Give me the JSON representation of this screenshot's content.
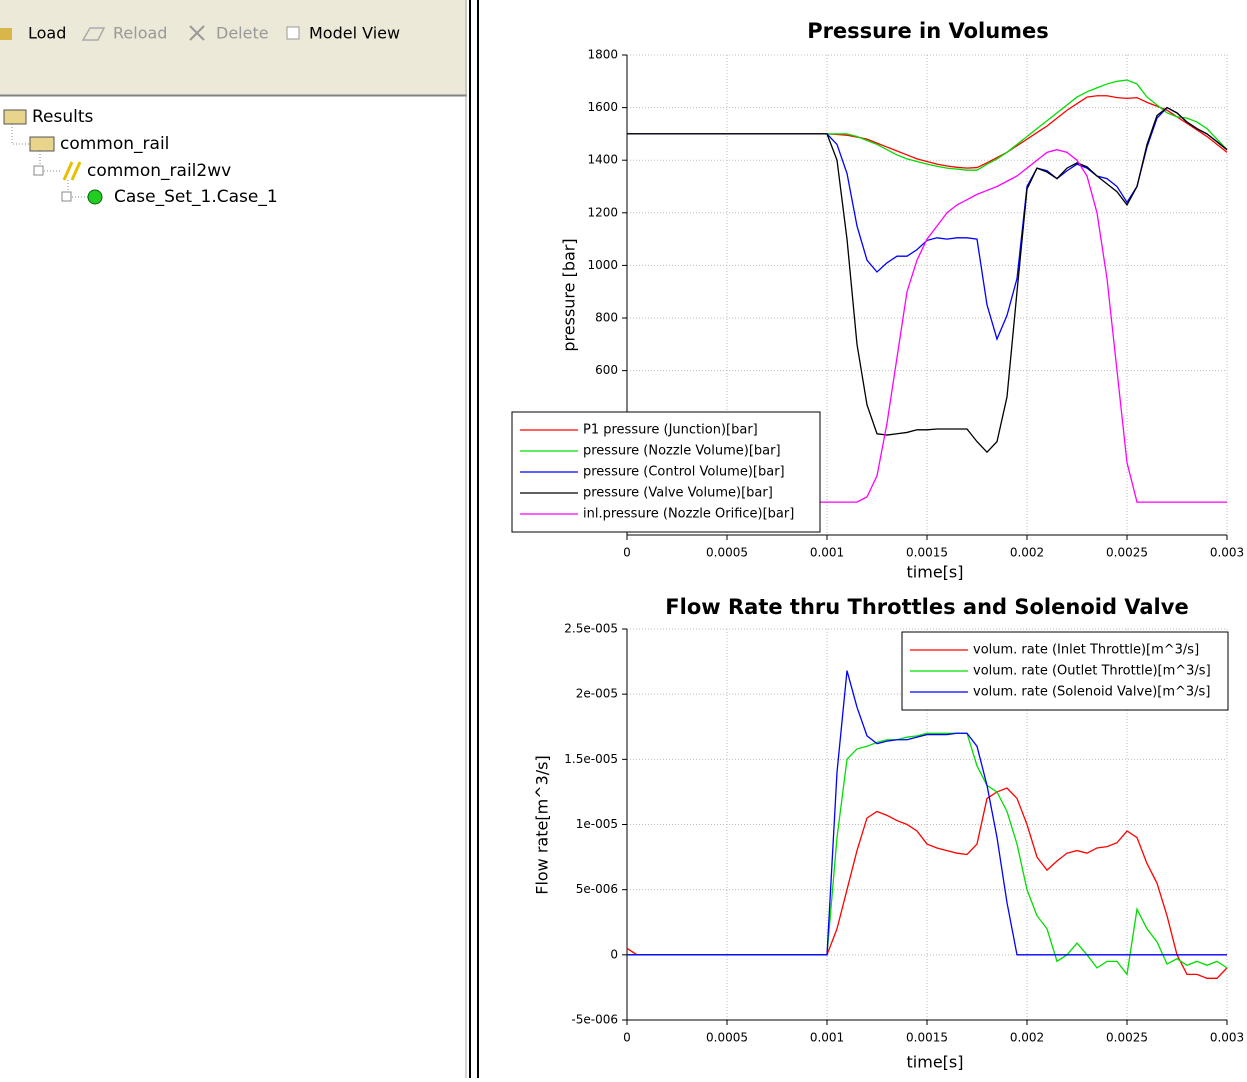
{
  "toolbar": {
    "buttons": [
      "Load",
      "Reload",
      "Delete"
    ],
    "checkbox": "Model View"
  },
  "tree": {
    "nodes": [
      "Results",
      "common_rail",
      "common_rail2wv",
      "Case_Set_1.Case_1"
    ]
  },
  "chart_data": [
    {
      "type": "line",
      "title": "Pressure in Volumes",
      "x_label": "time[s]",
      "y_label": "pressure [bar]",
      "x": [
        0,
        5e-05,
        0.0001,
        0.00015,
        0.0002,
        0.00025,
        0.0003,
        0.00035,
        0.0004,
        0.00045,
        0.0005,
        0.00055,
        0.0006,
        0.00065,
        0.0007,
        0.00075,
        0.0008,
        0.00085,
        0.0009,
        0.00095,
        0.001,
        0.00105,
        0.0011,
        0.00115,
        0.0012,
        0.00125,
        0.0013,
        0.00135,
        0.0014,
        0.00145,
        0.0015,
        0.00155,
        0.0016,
        0.00165,
        0.0017,
        0.00175,
        0.0018,
        0.00185,
        0.0019,
        0.00195,
        0.002,
        0.00205,
        0.0021,
        0.00215,
        0.0022,
        0.00225,
        0.0023,
        0.00235,
        0.0024,
        0.00245,
        0.0025,
        0.00255,
        0.0026,
        0.00265,
        0.0027,
        0.00275,
        0.0028,
        0.00285,
        0.0029,
        0.00295,
        0.003
      ],
      "series": [
        {
          "name": "P1 pressure (Junction)[bar]",
          "color": "#ff0000",
          "values": [
            1500,
            1500,
            1500,
            1500,
            1500,
            1500,
            1500,
            1500,
            1500,
            1500,
            1500,
            1500,
            1500,
            1500,
            1500,
            1500,
            1500,
            1500,
            1500,
            1500,
            1500,
            1498,
            1495,
            1488,
            1480,
            1465,
            1450,
            1435,
            1420,
            1405,
            1395,
            1385,
            1378,
            1373,
            1370,
            1372,
            1390,
            1410,
            1430,
            1455,
            1480,
            1505,
            1530,
            1560,
            1590,
            1615,
            1640,
            1645,
            1645,
            1638,
            1635,
            1638,
            1620,
            1605,
            1590,
            1565,
            1540,
            1515,
            1490,
            1460,
            1430
          ]
        },
        {
          "name": "pressure (Nozzle Volume)[bar]",
          "color": "#00dd00",
          "values": [
            1500,
            1500,
            1500,
            1500,
            1500,
            1500,
            1500,
            1500,
            1500,
            1500,
            1500,
            1500,
            1500,
            1500,
            1500,
            1500,
            1500,
            1500,
            1500,
            1500,
            1500,
            1500,
            1500,
            1490,
            1475,
            1460,
            1440,
            1420,
            1405,
            1395,
            1385,
            1377,
            1370,
            1366,
            1362,
            1362,
            1385,
            1405,
            1430,
            1460,
            1490,
            1520,
            1550,
            1580,
            1610,
            1640,
            1660,
            1675,
            1690,
            1700,
            1705,
            1690,
            1640,
            1610,
            1580,
            1565,
            1560,
            1545,
            1520,
            1480,
            1440
          ]
        },
        {
          "name": "pressure (Control Volume)[bar]",
          "color": "#0000ff",
          "values": [
            1500,
            1500,
            1500,
            1500,
            1500,
            1500,
            1500,
            1500,
            1500,
            1500,
            1500,
            1500,
            1500,
            1500,
            1500,
            1500,
            1500,
            1500,
            1500,
            1500,
            1500,
            1460,
            1350,
            1150,
            1020,
            975,
            1010,
            1035,
            1035,
            1060,
            1095,
            1105,
            1100,
            1105,
            1105,
            1100,
            850,
            720,
            810,
            950,
            1300,
            1370,
            1360,
            1330,
            1360,
            1385,
            1370,
            1340,
            1330,
            1300,
            1240,
            1300,
            1450,
            1560,
            1600,
            1580,
            1545,
            1520,
            1500,
            1470,
            1440
          ]
        },
        {
          "name": "pressure (Valve Volume)[bar]",
          "color": "#000000",
          "values": [
            1500,
            1500,
            1500,
            1500,
            1500,
            1500,
            1500,
            1500,
            1500,
            1500,
            1500,
            1500,
            1500,
            1500,
            1500,
            1500,
            1500,
            1500,
            1500,
            1500,
            1500,
            1400,
            1100,
            700,
            470,
            360,
            355,
            360,
            365,
            375,
            375,
            378,
            378,
            378,
            378,
            330,
            290,
            330,
            500,
            900,
            1290,
            1370,
            1355,
            1330,
            1370,
            1390,
            1375,
            1340,
            1310,
            1280,
            1230,
            1300,
            1460,
            1570,
            1600,
            1580,
            1545,
            1520,
            1500,
            1470,
            1440
          ]
        },
        {
          "name": "inl.pressure (Nozzle Orifice)[bar]",
          "color": "#ff00ff",
          "values": [
            100,
            100,
            100,
            100,
            100,
            100,
            100,
            100,
            100,
            100,
            100,
            100,
            100,
            100,
            100,
            100,
            100,
            100,
            100,
            100,
            100,
            100,
            100,
            100,
            120,
            200,
            400,
            650,
            900,
            1020,
            1100,
            1150,
            1200,
            1230,
            1250,
            1270,
            1285,
            1300,
            1320,
            1340,
            1370,
            1400,
            1430,
            1440,
            1430,
            1400,
            1340,
            1200,
            950,
            600,
            250,
            100,
            100,
            100,
            100,
            100,
            100,
            100,
            100,
            100,
            100
          ]
        }
      ],
      "xlim": [
        0,
        0.003
      ],
      "xticks": [
        0,
        0.0005,
        0.001,
        0.0015,
        0.002,
        0.0025,
        0.003
      ],
      "ylim": [
        -25,
        1800
      ],
      "yticks": [
        600,
        800,
        1000,
        1200,
        1400,
        1600,
        1800
      ],
      "grid": true,
      "legend": "lower left"
    },
    {
      "type": "line",
      "title": "Flow Rate thru Throttles and Solenoid Valve",
      "x_label": "time[s]",
      "y_label": "Flow rate[m^3/s]",
      "x": [
        0,
        5e-05,
        0.0001,
        0.00015,
        0.0002,
        0.00025,
        0.0003,
        0.00035,
        0.0004,
        0.00045,
        0.0005,
        0.00055,
        0.0006,
        0.00065,
        0.0007,
        0.00075,
        0.0008,
        0.00085,
        0.0009,
        0.00095,
        0.001,
        0.00105,
        0.0011,
        0.00115,
        0.0012,
        0.00125,
        0.0013,
        0.00135,
        0.0014,
        0.00145,
        0.0015,
        0.00155,
        0.0016,
        0.00165,
        0.0017,
        0.00175,
        0.0018,
        0.00185,
        0.0019,
        0.00195,
        0.002,
        0.00205,
        0.0021,
        0.00215,
        0.0022,
        0.00225,
        0.0023,
        0.00235,
        0.0024,
        0.00245,
        0.0025,
        0.00255,
        0.0026,
        0.00265,
        0.0027,
        0.00275,
        0.0028,
        0.00285,
        0.0029,
        0.00295,
        0.003
      ],
      "series": [
        {
          "name": "volum. rate (Inlet Throttle)[m^3/s]",
          "color": "#ff0000",
          "values": [
            5e-07,
            0,
            0,
            0,
            0,
            0,
            0,
            0,
            0,
            0,
            0,
            0,
            0,
            0,
            0,
            0,
            0,
            0,
            0,
            0,
            0,
            2e-06,
            5e-06,
            8e-06,
            1.05e-05,
            1.1e-05,
            1.07e-05,
            1.03e-05,
            1e-05,
            9.5e-06,
            8.5e-06,
            8.2e-06,
            8e-06,
            7.8e-06,
            7.7e-06,
            8.5e-06,
            1.2e-05,
            1.25e-05,
            1.28e-05,
            1.2e-05,
            1e-05,
            7.5e-06,
            6.5e-06,
            7.2e-06,
            7.8e-06,
            8e-06,
            7.8e-06,
            8.2e-06,
            8.3e-06,
            8.6e-06,
            9.5e-06,
            9e-06,
            7e-06,
            5.5e-06,
            3e-06,
            0,
            -1.5e-06,
            -1.5e-06,
            -1.8e-06,
            -1.8e-06,
            -1e-06
          ]
        },
        {
          "name": "volum. rate (Outlet Throttle)[m^3/s]",
          "color": "#00dd00",
          "values": [
            0,
            0,
            0,
            0,
            0,
            0,
            0,
            0,
            0,
            0,
            0,
            0,
            0,
            0,
            0,
            0,
            0,
            0,
            0,
            0,
            0,
            9e-06,
            1.5e-05,
            1.58e-05,
            1.6e-05,
            1.63e-05,
            1.65e-05,
            1.65e-05,
            1.67e-05,
            1.68e-05,
            1.7e-05,
            1.7e-05,
            1.7e-05,
            1.7e-05,
            1.7e-05,
            1.45e-05,
            1.3e-05,
            1.25e-05,
            1.1e-05,
            8.5e-06,
            5e-06,
            3e-06,
            2e-06,
            -5e-07,
            0,
            9e-07,
            0,
            -1e-06,
            -5e-07,
            -5e-07,
            -1.5e-06,
            3.5e-06,
            2e-06,
            1e-06,
            -7e-07,
            -3e-07,
            -8e-07,
            -5e-07,
            -8e-07,
            -5e-07,
            -1e-06
          ]
        },
        {
          "name": "volum. rate (Solenoid Valve)[m^3/s]",
          "color": "#0000ff",
          "values": [
            0,
            0,
            0,
            0,
            0,
            0,
            0,
            0,
            0,
            0,
            0,
            0,
            0,
            0,
            0,
            0,
            0,
            0,
            0,
            0,
            0,
            1.4e-05,
            2.18e-05,
            1.9e-05,
            1.68e-05,
            1.62e-05,
            1.64e-05,
            1.65e-05,
            1.65e-05,
            1.67e-05,
            1.69e-05,
            1.69e-05,
            1.69e-05,
            1.7e-05,
            1.7e-05,
            1.6e-05,
            1.3e-05,
            9e-06,
            4e-06,
            0,
            0,
            0,
            0,
            0,
            0,
            0,
            0,
            0,
            0,
            0,
            0,
            0,
            0,
            0,
            0,
            0,
            0,
            0,
            0,
            0,
            0
          ]
        }
      ],
      "xlim": [
        0,
        0.003
      ],
      "xticks": [
        0,
        0.0005,
        0.001,
        0.0015,
        0.002,
        0.0025,
        0.003
      ],
      "ylim": [
        -5e-06,
        2.5e-05
      ],
      "yticks": [
        {
          "value": -5e-06,
          "label": "-5e-006"
        },
        0,
        {
          "value": 5e-06,
          "label": "5e-006"
        },
        {
          "value": 1e-05,
          "label": "1e-005"
        },
        {
          "value": 1.5e-05,
          "label": "1.5e-005"
        },
        {
          "value": 2e-05,
          "label": "2e-005"
        },
        {
          "value": 2.5e-05,
          "label": "2.5e-005"
        }
      ],
      "grid": true,
      "legend": "upper right"
    }
  ]
}
